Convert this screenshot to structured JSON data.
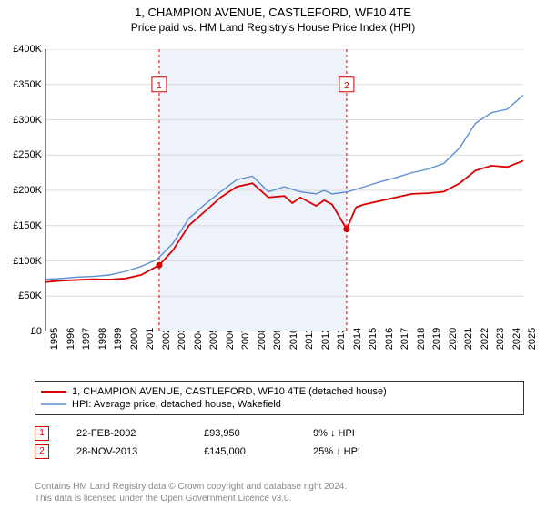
{
  "title": "1, CHAMPION AVENUE, CASTLEFORD, WF10 4TE",
  "subtitle": "Price paid vs. HM Land Registry's House Price Index (HPI)",
  "chart": {
    "type": "line",
    "background_color": "#ffffff",
    "band_color": "#eef2fa",
    "band_xstart": 2002.14,
    "band_xend": 2013.91,
    "grid_color": "#d9d9d9",
    "axis_color": "#000000",
    "xlim": [
      1995,
      2025
    ],
    "ylim": [
      0,
      400000
    ],
    "ytick_step": 50000,
    "yticks": [
      "£0",
      "£50K",
      "£100K",
      "£150K",
      "£200K",
      "£250K",
      "£300K",
      "£350K",
      "£400K"
    ],
    "xticks": [
      1995,
      1996,
      1997,
      1998,
      1999,
      2000,
      2001,
      2002,
      2003,
      2004,
      2005,
      2006,
      2007,
      2008,
      2009,
      2010,
      2011,
      2012,
      2013,
      2014,
      2015,
      2016,
      2017,
      2018,
      2019,
      2020,
      2021,
      2022,
      2023,
      2024,
      2025
    ],
    "series": [
      {
        "name": "price_paid",
        "label": "1, CHAMPION AVENUE, CASTLEFORD, WF10 4TE (detached house)",
        "color": "#dc0000",
        "width": 1.8,
        "data": [
          [
            1995,
            70000
          ],
          [
            1996,
            72000
          ],
          [
            1997,
            73000
          ],
          [
            1998,
            74000
          ],
          [
            1999,
            73500
          ],
          [
            2000,
            75000
          ],
          [
            2001,
            80000
          ],
          [
            2002.14,
            93950
          ],
          [
            2003,
            115000
          ],
          [
            2004,
            150000
          ],
          [
            2005,
            170000
          ],
          [
            2006,
            190000
          ],
          [
            2007,
            205000
          ],
          [
            2008,
            210000
          ],
          [
            2009,
            190000
          ],
          [
            2010,
            192000
          ],
          [
            2010.5,
            182000
          ],
          [
            2011,
            190000
          ],
          [
            2012,
            178000
          ],
          [
            2012.5,
            186000
          ],
          [
            2013,
            180000
          ],
          [
            2013.91,
            145000
          ],
          [
            2014.5,
            176000
          ],
          [
            2015,
            180000
          ],
          [
            2016,
            185000
          ],
          [
            2017,
            190000
          ],
          [
            2018,
            195000
          ],
          [
            2019,
            196000
          ],
          [
            2020,
            198000
          ],
          [
            2021,
            210000
          ],
          [
            2022,
            228000
          ],
          [
            2023,
            235000
          ],
          [
            2024,
            233000
          ],
          [
            2025,
            242000
          ]
        ]
      },
      {
        "name": "hpi",
        "label": "HPI: Average price, detached house, Wakefield",
        "color": "#5b8fd6",
        "width": 1.4,
        "data": [
          [
            1995,
            74000
          ],
          [
            1996,
            75000
          ],
          [
            1997,
            77000
          ],
          [
            1998,
            78000
          ],
          [
            1999,
            80000
          ],
          [
            2000,
            85000
          ],
          [
            2001,
            92000
          ],
          [
            2002,
            102000
          ],
          [
            2003,
            125000
          ],
          [
            2004,
            160000
          ],
          [
            2005,
            180000
          ],
          [
            2006,
            198000
          ],
          [
            2007,
            215000
          ],
          [
            2008,
            220000
          ],
          [
            2009,
            198000
          ],
          [
            2010,
            205000
          ],
          [
            2011,
            198000
          ],
          [
            2012,
            195000
          ],
          [
            2012.5,
            200000
          ],
          [
            2013,
            195000
          ],
          [
            2014,
            198000
          ],
          [
            2015,
            205000
          ],
          [
            2016,
            212000
          ],
          [
            2017,
            218000
          ],
          [
            2018,
            225000
          ],
          [
            2019,
            230000
          ],
          [
            2020,
            238000
          ],
          [
            2021,
            260000
          ],
          [
            2022,
            295000
          ],
          [
            2023,
            310000
          ],
          [
            2024,
            315000
          ],
          [
            2025,
            335000
          ]
        ]
      }
    ],
    "sale_markers": [
      {
        "num": "1",
        "x": 2002.14,
        "y": 93950,
        "label_y": 350000
      },
      {
        "num": "2",
        "x": 2013.91,
        "y": 145000,
        "label_y": 350000
      }
    ],
    "marker_line_color": "#d00000",
    "marker_line_dash": "3,3",
    "marker_point_color": "#d00000"
  },
  "legend": {
    "items": [
      {
        "color": "#dc0000",
        "width": 2,
        "label_path": "chart.series.0.label"
      },
      {
        "color": "#5b8fd6",
        "width": 1.5,
        "label_path": "chart.series.1.label"
      }
    ]
  },
  "sale_rows": [
    {
      "num": "1",
      "date": "22-FEB-2002",
      "price": "£93,950",
      "diff": "9% ↓ HPI"
    },
    {
      "num": "2",
      "date": "28-NOV-2013",
      "price": "£145,000",
      "diff": "25% ↓ HPI"
    }
  ],
  "footer_line1": "Contains HM Land Registry data © Crown copyright and database right 2024.",
  "footer_line2": "This data is licensed under the Open Government Licence v3.0."
}
